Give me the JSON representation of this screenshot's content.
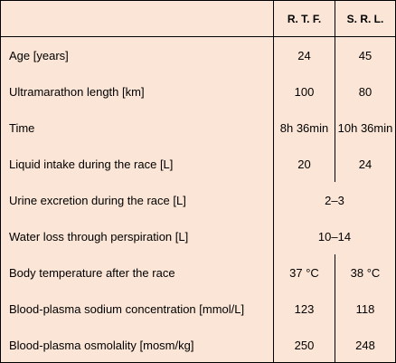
{
  "header": {
    "label": "",
    "col_a": "R. T. F.",
    "col_b": "S. R. L."
  },
  "rows": [
    {
      "label": "Age [years]",
      "a": "24",
      "b": "45"
    },
    {
      "label": "Ultramarathon length [km]",
      "a": "100",
      "b": "80"
    },
    {
      "label": "Time",
      "a": "8h 36min",
      "b": "10h 36min"
    },
    {
      "label": "Liquid intake during the race [L]",
      "a": "20",
      "b": "24"
    },
    {
      "label": "Urine excretion during the race [L]",
      "shared": "2–3"
    },
    {
      "label": "Water loss through perspiration [L]",
      "shared": "10–14"
    },
    {
      "label": "Body temperature after the race",
      "a": "37 °C",
      "b": "38 °C"
    },
    {
      "label": "Blood-plasma sodium concentration [mmol/L]",
      "a": "123",
      "b": "118"
    },
    {
      "label": "Blood-plasma osmolality [mosm/kg]",
      "a": "250",
      "b": "248"
    }
  ],
  "colors": {
    "background": "#fbe5d6",
    "border": "#000000",
    "text": "#000000"
  }
}
